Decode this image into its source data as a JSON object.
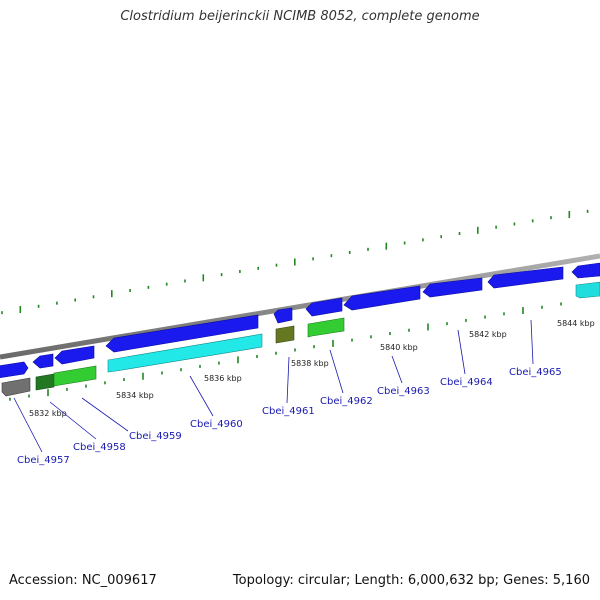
{
  "title": "Clostridium beijerinckii NCIMB 8052, complete genome",
  "footer": {
    "accession": "Accession: NC_009617",
    "summary": "Topology: circular; Length: 6,000,632 bp; Genes: 5,160"
  },
  "colors": {
    "backbone": "#8c8c8c",
    "forward_cds": "#1a1aee",
    "reverse_cds": "#22cc22",
    "reverse_alt": "#22dddd",
    "gc_ticks": "#228822",
    "label": "#1a1ab0"
  },
  "ruler": [
    {
      "label": "5832 kbp"
    },
    {
      "label": "5834 kbp"
    },
    {
      "label": "5836 kbp"
    },
    {
      "label": "5838 kbp"
    },
    {
      "label": "5840 kbp"
    },
    {
      "label": "5842 kbp"
    },
    {
      "label": "5844 kbp"
    }
  ],
  "genes": [
    {
      "name": "Cbei_4957",
      "strand": "reverse",
      "color": "#707070"
    },
    {
      "name": "Cbei_4958",
      "strand": "reverse",
      "color": "#227722"
    },
    {
      "name": "Cbei_4959",
      "strand": "reverse",
      "color": "#33cc33"
    },
    {
      "name": "Cbei_4960",
      "strand": "reverse",
      "color": "#22e8e8"
    },
    {
      "name": "Cbei_4961",
      "strand": "reverse",
      "color": "#667722"
    },
    {
      "name": "Cbei_4962",
      "strand": "reverse",
      "color": "#33cc33"
    },
    {
      "name": "Cbei_4963",
      "strand": "forward",
      "color": "#1a1aee"
    },
    {
      "name": "Cbei_4964",
      "strand": "forward",
      "color": "#1a1aee"
    },
    {
      "name": "Cbei_4965",
      "strand": "forward",
      "color": "#1a1aee"
    }
  ]
}
